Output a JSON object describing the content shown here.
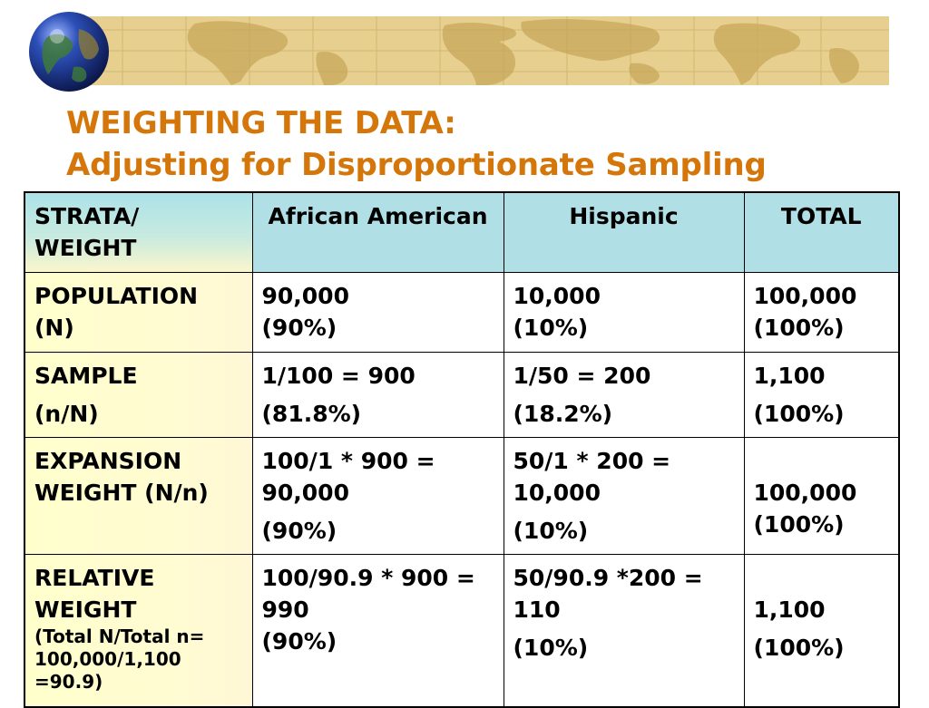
{
  "slide": {
    "title_line1": "WEIGHTING THE DATA:",
    "title_line2": "Adjusting for Disproportionate Sampling"
  },
  "table": {
    "header": {
      "strata_line1": "STRATA/",
      "strata_line2": "WEIGHT",
      "col1": "African American",
      "col2": "Hispanic",
      "col3": "TOTAL"
    },
    "population": {
      "label_line1": "POPULATION",
      "label_line2": "(N)",
      "aa_line1": "90,000",
      "aa_line2": "(90%)",
      "hisp_line1": "10,000",
      "hisp_line2": "(10%)",
      "total_line1": "100,000",
      "total_line2": "(100%)"
    },
    "sample": {
      "label_line1": "SAMPLE",
      "label_line2": "(n/N)",
      "aa_line1": "1/100 = 900",
      "aa_line2": "(81.8%)",
      "hisp_line1": "1/50 = 200",
      "hisp_line2": "(18.2%)",
      "total_line1": "1,100",
      "total_line2": "(100%)"
    },
    "expansion": {
      "label_line1": "EXPANSION",
      "label_line2": "WEIGHT (N/n)",
      "aa_line1": "100/1 * 900 =",
      "aa_line2": "90,000",
      "aa_line3": "(90%)",
      "hisp_line1": "50/1 * 200  =",
      "hisp_line2": "10,000",
      "hisp_line3": "(10%)",
      "total_line1": "100,000",
      "total_line2": "(100%)"
    },
    "relative": {
      "label_line1": "RELATIVE",
      "label_line2": "WEIGHT",
      "note_line1": "(Total N/Total n=",
      "note_line2": "100,000/1,100",
      "note_line3": "=90.9)",
      "aa_line1": "100/90.9 * 900 =",
      "aa_line2": "990",
      "aa_line3": "(90%)",
      "hisp_line1": "50/90.9 *200 =",
      "hisp_line2": "110",
      "hisp_line3": "(10%)",
      "total_line1": "1,100",
      "total_line2": "(100%)"
    }
  }
}
